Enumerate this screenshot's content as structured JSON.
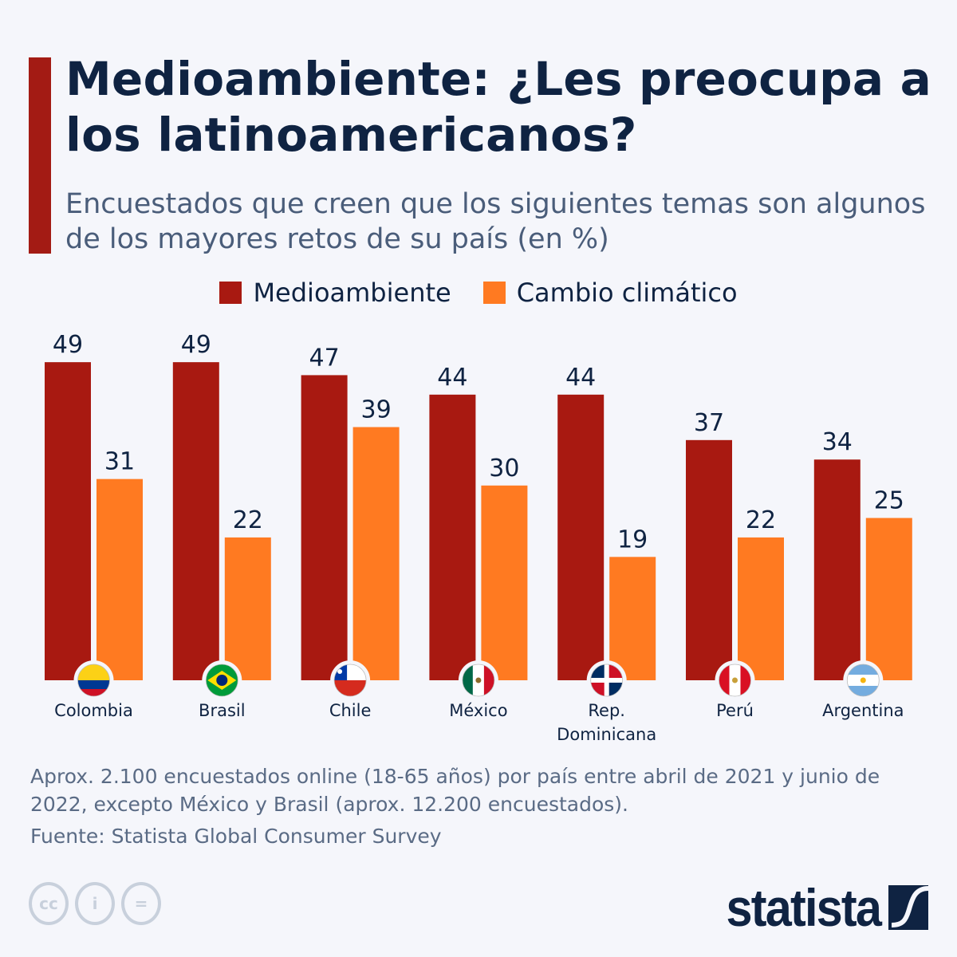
{
  "header": {
    "title": "Medioambiente: ¿Les preocupa a los latinoamericanos?",
    "subtitle": "Encuestados que creen que los siguientes temas son algunos de los mayores retos de su país (en %)"
  },
  "chart_data": {
    "type": "bar",
    "categories": [
      "Colombia",
      "Brasil",
      "Chile",
      "México",
      "Rep. Dominicana",
      "Perú",
      "Argentina"
    ],
    "series": [
      {
        "name": "Medioambiente",
        "color": "#a81911",
        "values": [
          49,
          49,
          47,
          44,
          44,
          37,
          34
        ]
      },
      {
        "name": "Cambio climático",
        "color": "#ff7a21",
        "values": [
          31,
          22,
          39,
          30,
          19,
          22,
          25
        ]
      }
    ],
    "ylim": [
      0,
      50
    ],
    "grid": false,
    "legend": "top-center",
    "flags": [
      "colombia-flag",
      "brazil-flag",
      "chile-flag",
      "mexico-flag",
      "dominican-republic-flag",
      "peru-flag",
      "argentina-flag"
    ]
  },
  "footer": {
    "note": "Aprox. 2.100 encuestados online (18-65 años) por país entre abril de 2021 y junio de 2022, excepto México y Brasil (aprox. 12.200 encuestados).",
    "source": "Fuente: Statista Global Consumer Survey",
    "license_icons": [
      "cc-icon",
      "attribution-icon",
      "no-derivatives-icon"
    ],
    "logo": "statista"
  }
}
